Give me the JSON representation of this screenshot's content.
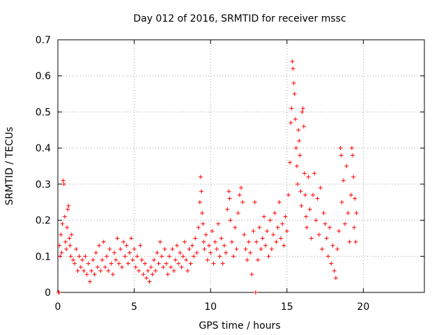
{
  "chart_data": {
    "type": "scatter",
    "title": "Day 012 of 2016, SRMTID for receiver mssc",
    "xlabel": "GPS time / hours",
    "ylabel": "SRMTID / TECUs",
    "xlim": [
      0,
      24
    ],
    "ylim": [
      0,
      0.7
    ],
    "grid": true,
    "legend": "none",
    "marker": "+",
    "color": "#ff0000",
    "x_ticks": [
      0,
      5,
      10,
      15,
      20
    ],
    "x_tick_labels": [
      "0",
      "5",
      "10",
      "15",
      "20"
    ],
    "y_ticks": [
      0,
      0.1,
      0.2,
      0.3,
      0.4,
      0.5,
      0.6,
      0.7
    ],
    "y_tick_labels": [
      "0",
      "0.1",
      "0.2",
      "0.3",
      "0.4",
      "0.5",
      "0.6",
      "0.7"
    ],
    "series": [
      {
        "name": "SRMTID",
        "points": [
          [
            0.05,
            0.0
          ],
          [
            0.08,
            0.0
          ],
          [
            0.1,
            0.13
          ],
          [
            0.15,
            0.1
          ],
          [
            0.2,
            0.16
          ],
          [
            0.25,
            0.11
          ],
          [
            0.3,
            0.19
          ],
          [
            0.35,
            0.31
          ],
          [
            0.4,
            0.3
          ],
          [
            0.45,
            0.21
          ],
          [
            0.5,
            0.14
          ],
          [
            0.55,
            0.12
          ],
          [
            0.6,
            0.18
          ],
          [
            0.65,
            0.23
          ],
          [
            0.7,
            0.24
          ],
          [
            0.75,
            0.15
          ],
          [
            0.8,
            0.13
          ],
          [
            0.85,
            0.1
          ],
          [
            0.9,
            0.16
          ],
          [
            1.0,
            0.09
          ],
          [
            1.1,
            0.08
          ],
          [
            1.2,
            0.12
          ],
          [
            1.3,
            0.06
          ],
          [
            1.4,
            0.1
          ],
          [
            1.5,
            0.07
          ],
          [
            1.6,
            0.09
          ],
          [
            1.7,
            0.06
          ],
          [
            1.8,
            0.1
          ],
          [
            1.9,
            0.05
          ],
          [
            2.0,
            0.08
          ],
          [
            2.1,
            0.03
          ],
          [
            2.2,
            0.06
          ],
          [
            2.3,
            0.09
          ],
          [
            2.4,
            0.05
          ],
          [
            2.5,
            0.11
          ],
          [
            2.6,
            0.07
          ],
          [
            2.7,
            0.13
          ],
          [
            2.8,
            0.06
          ],
          [
            2.9,
            0.09
          ],
          [
            3.0,
            0.14
          ],
          [
            3.1,
            0.07
          ],
          [
            3.2,
            0.1
          ],
          [
            3.3,
            0.06
          ],
          [
            3.4,
            0.12
          ],
          [
            3.5,
            0.08
          ],
          [
            3.6,
            0.05
          ],
          [
            3.7,
            0.11
          ],
          [
            3.8,
            0.09
          ],
          [
            3.9,
            0.15
          ],
          [
            4.0,
            0.08
          ],
          [
            4.1,
            0.12
          ],
          [
            4.2,
            0.07
          ],
          [
            4.3,
            0.14
          ],
          [
            4.4,
            0.1
          ],
          [
            4.5,
            0.13
          ],
          [
            4.6,
            0.08
          ],
          [
            4.7,
            0.11
          ],
          [
            4.8,
            0.15
          ],
          [
            4.9,
            0.09
          ],
          [
            5.0,
            0.12
          ],
          [
            5.1,
            0.07
          ],
          [
            5.2,
            0.1
          ],
          [
            5.3,
            0.06
          ],
          [
            5.4,
            0.13
          ],
          [
            5.5,
            0.09
          ],
          [
            5.6,
            0.05
          ],
          [
            5.7,
            0.08
          ],
          [
            5.8,
            0.04
          ],
          [
            5.9,
            0.06
          ],
          [
            6.0,
            0.03
          ],
          [
            6.1,
            0.07
          ],
          [
            6.2,
            0.05
          ],
          [
            6.3,
            0.09
          ],
          [
            6.4,
            0.06
          ],
          [
            6.5,
            0.11
          ],
          [
            6.6,
            0.08
          ],
          [
            6.7,
            0.14
          ],
          [
            6.8,
            0.1
          ],
          [
            6.9,
            0.07
          ],
          [
            7.0,
            0.12
          ],
          [
            7.1,
            0.08
          ],
          [
            7.2,
            0.05
          ],
          [
            7.3,
            0.1
          ],
          [
            7.4,
            0.07
          ],
          [
            7.5,
            0.12
          ],
          [
            7.6,
            0.06
          ],
          [
            7.7,
            0.09
          ],
          [
            7.8,
            0.13
          ],
          [
            7.9,
            0.08
          ],
          [
            8.0,
            0.11
          ],
          [
            8.1,
            0.07
          ],
          [
            8.2,
            0.1
          ],
          [
            8.3,
            0.14
          ],
          [
            8.4,
            0.09
          ],
          [
            8.5,
            0.06
          ],
          [
            8.6,
            0.12
          ],
          [
            8.7,
            0.08
          ],
          [
            8.8,
            0.13
          ],
          [
            8.9,
            0.1
          ],
          [
            9.0,
            0.15
          ],
          [
            9.1,
            0.11
          ],
          [
            9.2,
            0.18
          ],
          [
            9.3,
            0.25
          ],
          [
            9.35,
            0.32
          ],
          [
            9.4,
            0.28
          ],
          [
            9.45,
            0.22
          ],
          [
            9.5,
            0.19
          ],
          [
            9.55,
            0.14
          ],
          [
            9.6,
            0.12
          ],
          [
            9.7,
            0.16
          ],
          [
            9.8,
            0.09
          ],
          [
            9.9,
            0.13
          ],
          [
            10.0,
            0.11
          ],
          [
            10.1,
            0.17
          ],
          [
            10.2,
            0.08
          ],
          [
            10.3,
            0.14
          ],
          [
            10.4,
            0.12
          ],
          [
            10.5,
            0.19
          ],
          [
            10.6,
            0.1
          ],
          [
            10.7,
            0.15
          ],
          [
            10.8,
            0.08
          ],
          [
            10.9,
            0.13
          ],
          [
            11.0,
            0.11
          ],
          [
            11.1,
            0.23
          ],
          [
            11.2,
            0.28
          ],
          [
            11.25,
            0.26
          ],
          [
            11.3,
            0.2
          ],
          [
            11.4,
            0.14
          ],
          [
            11.5,
            0.1
          ],
          [
            11.6,
            0.18
          ],
          [
            11.7,
            0.12
          ],
          [
            11.8,
            0.22
          ],
          [
            11.9,
            0.27
          ],
          [
            12.0,
            0.29
          ],
          [
            12.1,
            0.25
          ],
          [
            12.2,
            0.16
          ],
          [
            12.3,
            0.12
          ],
          [
            12.4,
            0.09
          ],
          [
            12.5,
            0.14
          ],
          [
            12.6,
            0.11
          ],
          [
            12.7,
            0.05
          ],
          [
            12.8,
            0.17
          ],
          [
            12.9,
            0.25
          ],
          [
            12.95,
            0.0
          ],
          [
            13.0,
            0.14
          ],
          [
            13.1,
            0.09
          ],
          [
            13.2,
            0.18
          ],
          [
            13.3,
            0.12
          ],
          [
            13.4,
            0.15
          ],
          [
            13.5,
            0.21
          ],
          [
            13.6,
            0.13
          ],
          [
            13.7,
            0.17
          ],
          [
            13.8,
            0.1
          ],
          [
            13.9,
            0.2
          ],
          [
            14.0,
            0.12
          ],
          [
            14.1,
            0.16
          ],
          [
            14.2,
            0.22
          ],
          [
            14.3,
            0.14
          ],
          [
            14.4,
            0.18
          ],
          [
            14.5,
            0.25
          ],
          [
            14.6,
            0.15
          ],
          [
            14.7,
            0.19
          ],
          [
            14.8,
            0.13
          ],
          [
            14.9,
            0.21
          ],
          [
            15.0,
            0.17
          ],
          [
            15.1,
            0.27
          ],
          [
            15.2,
            0.36
          ],
          [
            15.25,
            0.47
          ],
          [
            15.3,
            0.51
          ],
          [
            15.35,
            0.64
          ],
          [
            15.4,
            0.62
          ],
          [
            15.45,
            0.58
          ],
          [
            15.5,
            0.55
          ],
          [
            15.55,
            0.48
          ],
          [
            15.6,
            0.4
          ],
          [
            15.65,
            0.35
          ],
          [
            15.7,
            0.3
          ],
          [
            15.75,
            0.45
          ],
          [
            15.8,
            0.42
          ],
          [
            15.85,
            0.38
          ],
          [
            15.9,
            0.28
          ],
          [
            15.95,
            0.24
          ],
          [
            16.0,
            0.5
          ],
          [
            16.05,
            0.51
          ],
          [
            16.1,
            0.46
          ],
          [
            16.15,
            0.33
          ],
          [
            16.2,
            0.27
          ],
          [
            16.25,
            0.21
          ],
          [
            16.3,
            0.18
          ],
          [
            16.4,
            0.32
          ],
          [
            16.5,
            0.23
          ],
          [
            16.6,
            0.15
          ],
          [
            16.7,
            0.27
          ],
          [
            16.8,
            0.33
          ],
          [
            16.9,
            0.2
          ],
          [
            17.0,
            0.26
          ],
          [
            17.1,
            0.16
          ],
          [
            17.2,
            0.29
          ],
          [
            17.3,
            0.12
          ],
          [
            17.4,
            0.22
          ],
          [
            17.5,
            0.19
          ],
          [
            17.6,
            0.15
          ],
          [
            17.7,
            0.1
          ],
          [
            17.8,
            0.18
          ],
          [
            17.9,
            0.08
          ],
          [
            18.0,
            0.13
          ],
          [
            18.1,
            0.06
          ],
          [
            18.2,
            0.04
          ],
          [
            18.3,
            0.12
          ],
          [
            18.4,
            0.17
          ],
          [
            18.5,
            0.4
          ],
          [
            18.55,
            0.38
          ],
          [
            18.6,
            0.25
          ],
          [
            18.7,
            0.31
          ],
          [
            18.8,
            0.19
          ],
          [
            18.9,
            0.35
          ],
          [
            19.0,
            0.22
          ],
          [
            19.1,
            0.14
          ],
          [
            19.2,
            0.27
          ],
          [
            19.25,
            0.4
          ],
          [
            19.3,
            0.38
          ],
          [
            19.35,
            0.32
          ],
          [
            19.4,
            0.18
          ],
          [
            19.45,
            0.26
          ],
          [
            19.5,
            0.14
          ],
          [
            19.55,
            0.22
          ]
        ]
      }
    ]
  }
}
